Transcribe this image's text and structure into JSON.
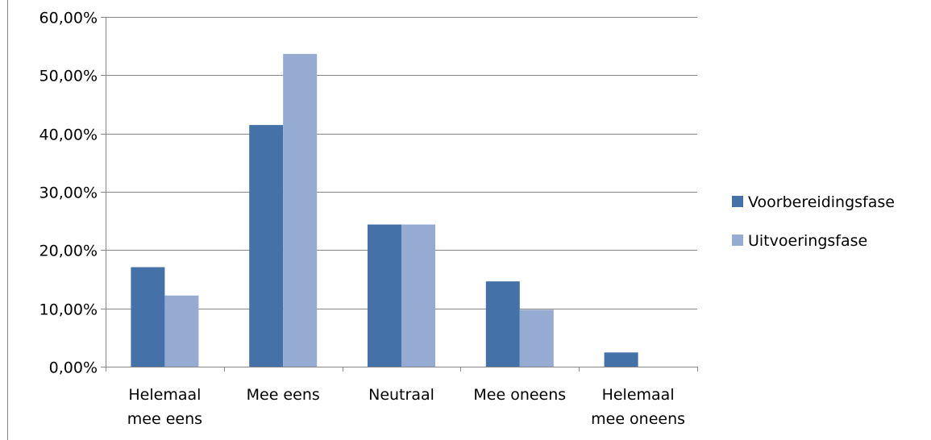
{
  "chart_data": {
    "type": "bar",
    "title": "",
    "xlabel": "",
    "ylabel": "",
    "categories": [
      [
        "Helemaal",
        "mee eens"
      ],
      [
        "Mee eens"
      ],
      [
        "Neutraal"
      ],
      [
        "Mee oneens"
      ],
      [
        "Helemaal",
        "mee oneens"
      ]
    ],
    "series": [
      {
        "name": "Voorbereidingsfase",
        "color": "#4472A8",
        "values": [
          17.07,
          41.46,
          24.39,
          14.63,
          2.44
        ]
      },
      {
        "name": "Uitvoeringsfase",
        "color": "#95ABD2",
        "values": [
          12.2,
          53.66,
          24.39,
          9.76,
          0
        ]
      }
    ],
    "ylim": [
      0,
      60
    ],
    "yticks": [
      0,
      10,
      20,
      30,
      40,
      50,
      60
    ],
    "ytick_labels": [
      "0,00%",
      "10,00%",
      "20,00%",
      "30,00%",
      "40,00%",
      "50,00%",
      "60,00%"
    ],
    "grid": true,
    "legend_position": "right"
  }
}
